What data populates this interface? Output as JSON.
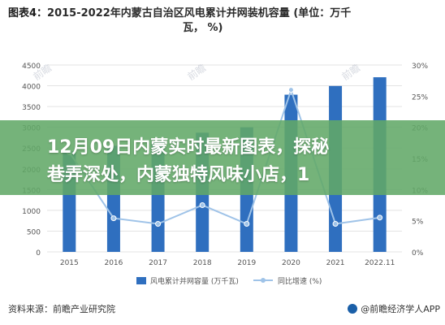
{
  "header": {
    "title_prefix": "图表4：",
    "title_main": "2015-2022年内蒙古自治区风电累计并网装机容量 (单位：万千",
    "title_cont": "瓦， %)"
  },
  "overlay": {
    "line1": "12月09日内蒙实时最新图表，探秘",
    "line2": "巷弄深处，内蒙独特风味小店，1"
  },
  "footer": {
    "source": "资料来源：前瞻产业研究院",
    "brand": "@前瞻经济学人APP"
  },
  "colors": {
    "bar": "#2f6fbf",
    "line": "#9fc3e8",
    "banner": "#62a868",
    "headline": "#ffffff"
  },
  "chart_data": {
    "type": "bar",
    "categories": [
      "2015",
      "2016",
      "2017",
      "2018",
      "2019",
      "2020",
      "2021",
      "2022.11"
    ],
    "series": [
      {
        "name": "风电累计并网容量 (万千瓦)",
        "type": "bar",
        "axis": "left",
        "values": [
          2425,
          2555,
          2670,
          2870,
          3000,
          3785,
          3995,
          4205
        ]
      },
      {
        "name": "同比增速 (%)",
        "type": "line",
        "axis": "right",
        "values": [
          16.0,
          5.4,
          4.5,
          7.5,
          4.5,
          26.0,
          4.5,
          5.5
        ]
      }
    ],
    "y_left": {
      "ticks": [
        "0",
        "500",
        "1000",
        "1500",
        "2000",
        "2500",
        "3000",
        "3500",
        "4000",
        "4500"
      ],
      "range": [
        0,
        4500
      ]
    },
    "y_right": {
      "ticks": [
        "0%",
        "5%",
        "10%",
        "15%",
        "20%",
        "25%",
        "30%"
      ],
      "range": [
        0,
        30
      ]
    },
    "legend_position": "bottom",
    "grid": true
  }
}
